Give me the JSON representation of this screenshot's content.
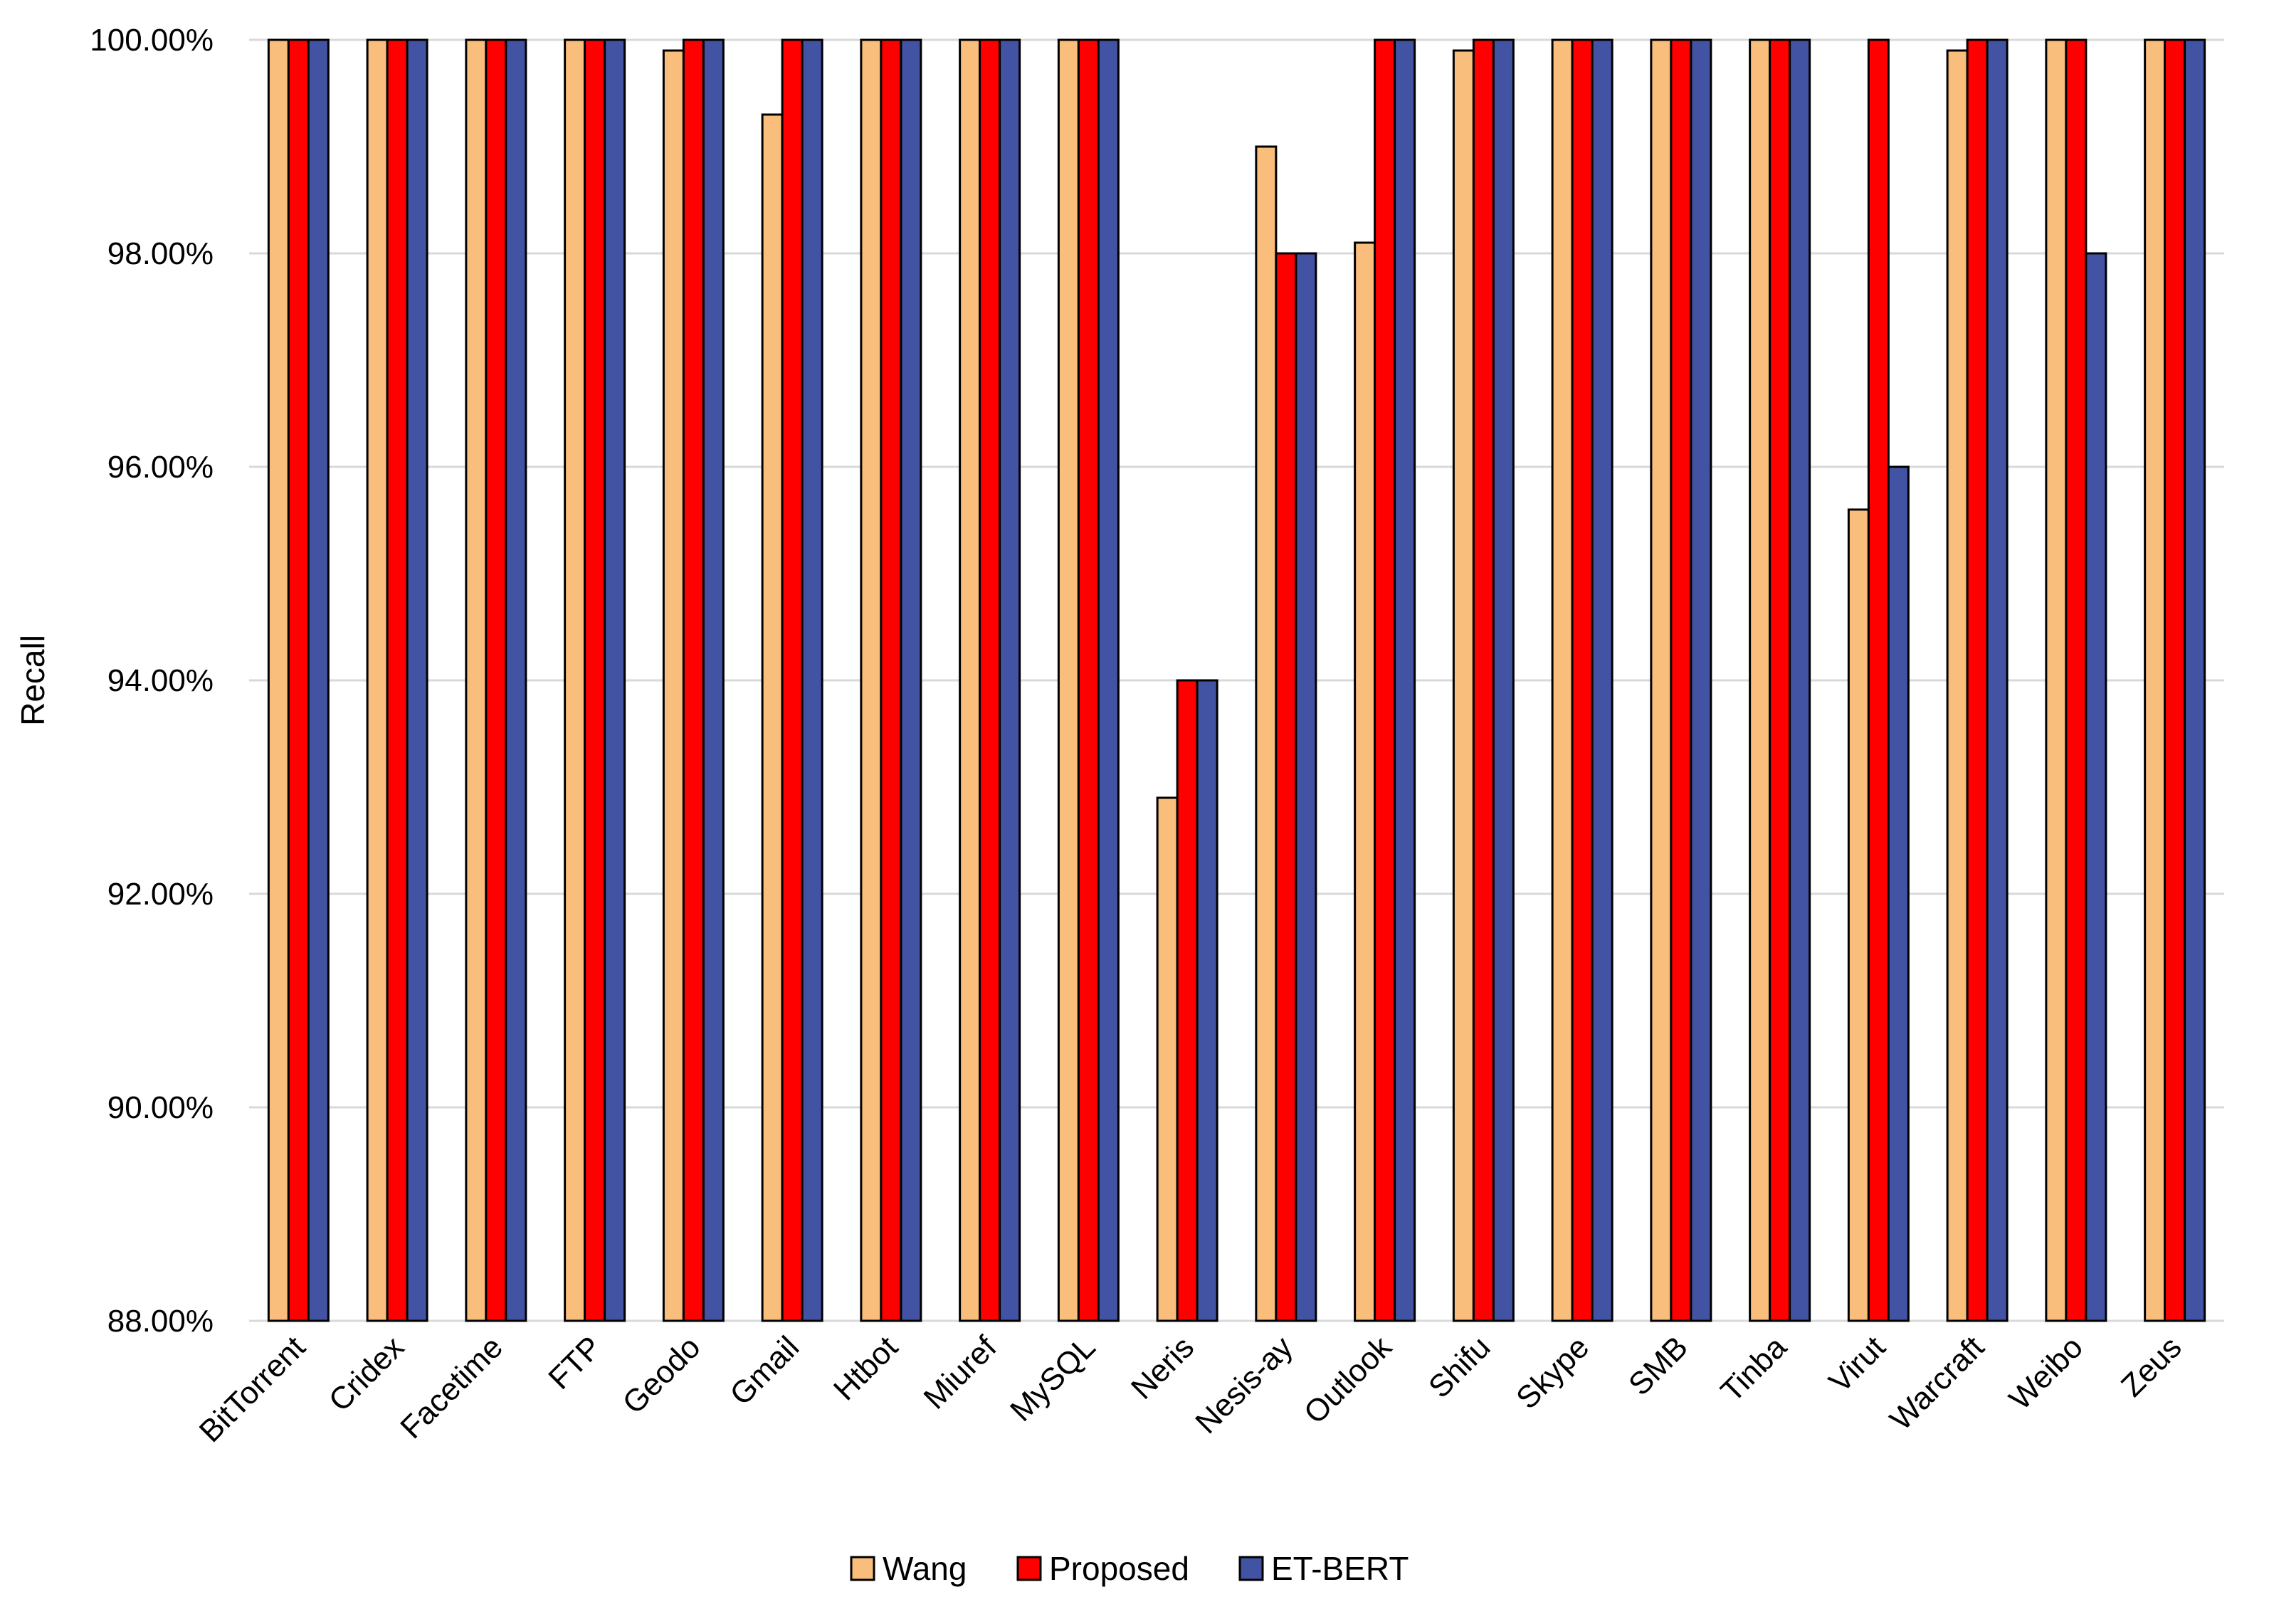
{
  "chart_data": {
    "type": "bar",
    "title": "",
    "xlabel": "",
    "ylabel": "Recall",
    "ylim": [
      88,
      100
    ],
    "yticks": [
      88,
      90,
      92,
      94,
      96,
      98,
      100
    ],
    "ytick_labels": [
      "88.00%",
      "90.00%",
      "92.00%",
      "94.00%",
      "96.00%",
      "98.00%",
      "100.00%"
    ],
    "grid": true,
    "legend_position": "bottom",
    "categories": [
      "BitTorrent",
      "Cridex",
      "Facetime",
      "FTP",
      "Geodo",
      "Gmail",
      "Htbot",
      "Miuref",
      "MySQL",
      "Neris",
      "Nesis-ay",
      "Outlook",
      "Shifu",
      "Skype",
      "SMB",
      "Tinba",
      "Virut",
      "Warcraft",
      "Weibo",
      "Zeus"
    ],
    "series": [
      {
        "name": "Wang",
        "color": "#f9bd7c",
        "values": [
          100,
          100,
          100,
          100,
          99.9,
          99.3,
          100,
          100,
          100,
          92.9,
          99.0,
          98.1,
          99.9,
          100,
          100,
          100,
          95.6,
          99.9,
          100,
          100
        ]
      },
      {
        "name": "Proposed",
        "color": "#ff0000",
        "values": [
          100,
          100,
          100,
          100,
          100,
          100,
          100,
          100,
          100,
          94.0,
          98.0,
          100,
          100,
          100,
          100,
          100,
          100,
          100,
          100,
          100
        ]
      },
      {
        "name": "ET-BERT",
        "color": "#4253a3",
        "values": [
          100,
          100,
          100,
          100,
          100,
          100,
          100,
          100,
          100,
          94.0,
          98.0,
          100,
          100,
          100,
          100,
          100,
          96.0,
          100,
          98.0,
          100
        ]
      }
    ]
  }
}
